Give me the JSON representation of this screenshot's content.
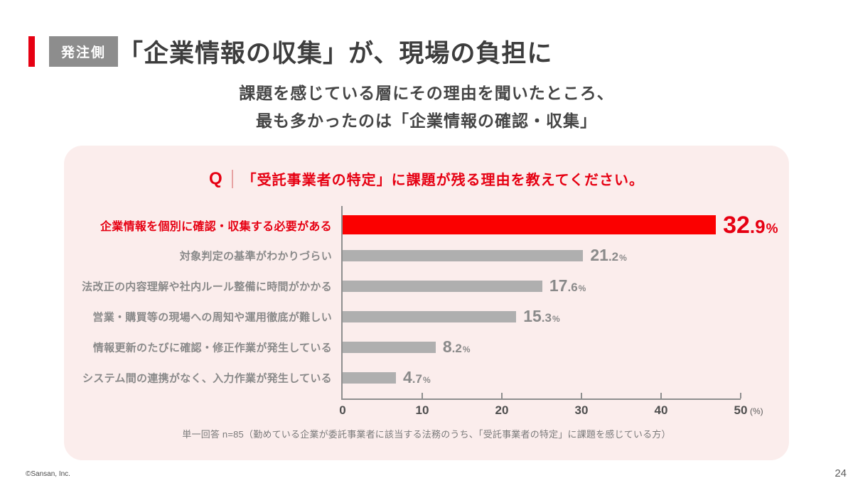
{
  "slide": {
    "badge_label": "発注側",
    "title": "「企業情報の収集」が、現場の負担に",
    "subtitle_lines": [
      "課題を感じている層にその理由を聞いたところ、",
      "最も多かったのは「企業情報の確認・収集」"
    ],
    "copyright": "©Sansan, Inc.",
    "page_number": "24"
  },
  "question": {
    "prefix": "Q",
    "text": "「受託事業者の特定」に課題が残る理由を教えてください。"
  },
  "chart_data": {
    "type": "bar",
    "orientation": "horizontal",
    "title": "「受託事業者の特定」に課題が残る理由を教えてください。",
    "categories": [
      "企業情報を個別に確認・収集する必要がある",
      "対象判定の基準がわかりづらい",
      "法改正の内容理解や社内ルール整備に時間がかかる",
      "営業・購買等の現場への周知や運用徹底が難しい",
      "情報更新のたびに確認・修正作業が発生している",
      "システム間の連携がなく、入力作業が発生している"
    ],
    "values": [
      32.9,
      21.2,
      17.6,
      15.3,
      8.2,
      4.7
    ],
    "unit": "%",
    "highlight_index": 0,
    "x_ticks": [
      0,
      10,
      20,
      30,
      40,
      50
    ],
    "x_axis_unit": "(%)",
    "xlim": [
      0,
      50
    ],
    "bar_display_scale": 1.425,
    "grid": "off",
    "legend": "none",
    "note": "単一回答 n=85（勤めている企業が委託事業者に該当する法務のうち、「受託事業者の特定」に課題を感じている方）",
    "colors": {
      "highlight_bar": "#FB0000",
      "default_bar": "#AFAFAF",
      "highlight_text": "#E60012",
      "default_text": "#8A8A8A"
    }
  }
}
